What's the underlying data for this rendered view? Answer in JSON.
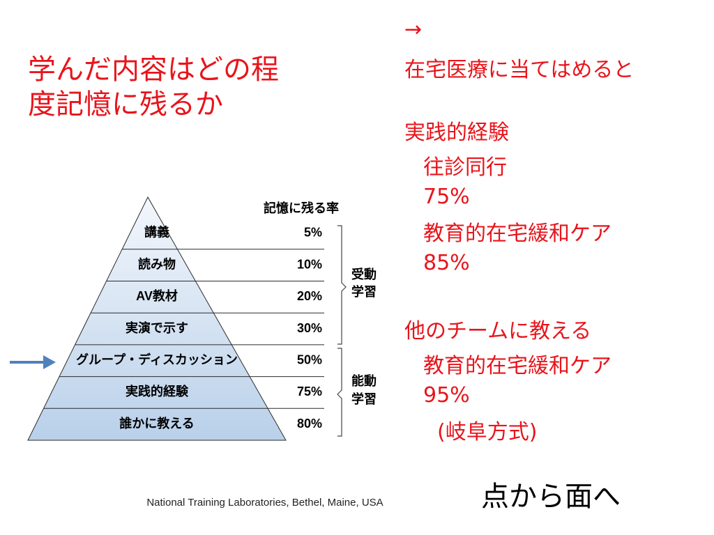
{
  "title": [
    "学んだ内容はどの程",
    "度記憶に残るか"
  ],
  "notes": [
    "→",
    "在宅医療に当てはめると",
    "実践的経験",
    "往診同行",
    "75%",
    "教育的在宅緩和ケア",
    "85%",
    "他のチームに教える",
    "教育的在宅緩和ケア",
    "95%",
    "(岐阜方式)"
  ],
  "pyramid": {
    "header": "記憶に残る率",
    "levels": [
      {
        "label": "講義",
        "rate": "5%"
      },
      {
        "label": "読み物",
        "rate": "10%"
      },
      {
        "label": "AV教材",
        "rate": "20%"
      },
      {
        "label": "実演で示す",
        "rate": "30%"
      },
      {
        "label": "グループ・ディスカッション",
        "rate": "50%"
      },
      {
        "label": "実践的経験",
        "rate": "75%"
      },
      {
        "label": "誰かに教える",
        "rate": "80%"
      }
    ],
    "groups": [
      [
        "受動",
        "学習"
      ],
      [
        "能動",
        "学習"
      ]
    ]
  },
  "source": "National Training Laboratories, Bethel, Maine, USA",
  "footer": "点から面へ"
}
